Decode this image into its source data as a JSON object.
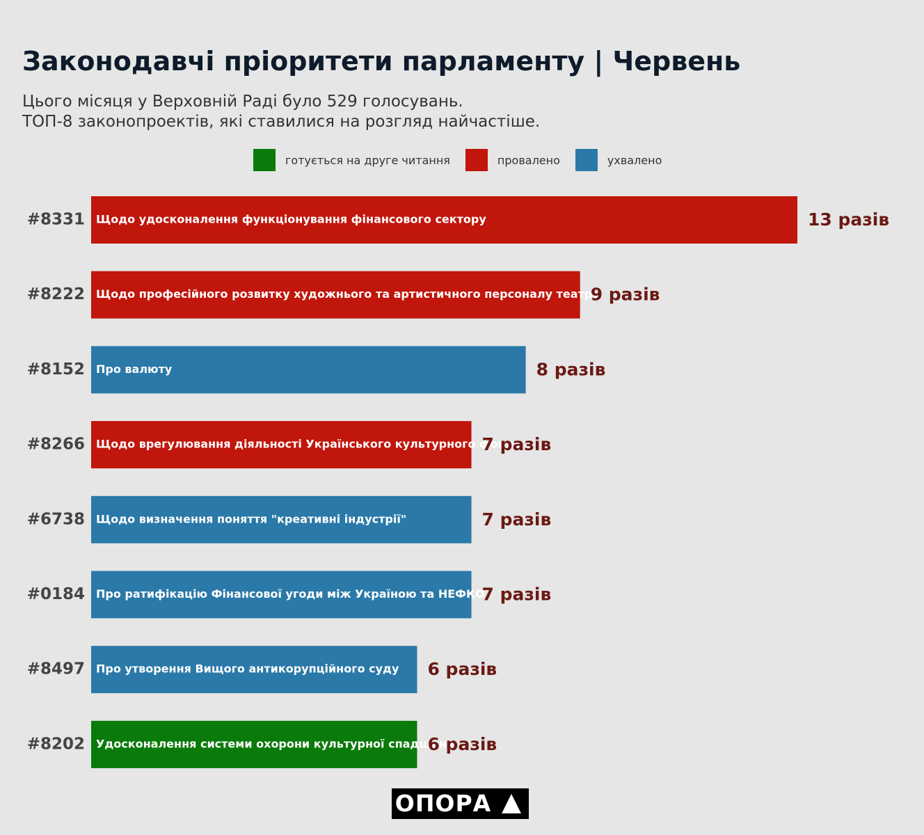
{
  "header": {
    "title": "Законодавчі пріоритети парламенту | Червень",
    "subtitle_line1": "Цього місяця у Верховній Раді було 529 голосувань.",
    "subtitle_line2": "ТОП-8 законопроектів, які ставилися на розгляд найчастіше."
  },
  "legend": [
    {
      "label": "готується на друге читання",
      "color": "#0a7a0a"
    },
    {
      "label": "провалено",
      "color": "#c0160c"
    },
    {
      "label": "ухвалено",
      "color": "#2a79a8"
    }
  ],
  "chart_data": {
    "type": "bar",
    "orientation": "horizontal",
    "title": "Законодавчі пріоритети парламенту | Червень",
    "categories": [
      "#8331",
      "#8222",
      "#8152",
      "#8266",
      "#6738",
      "#0184",
      "#8497",
      "#8202"
    ],
    "bar_labels": [
      "Щодо удосконалення функціонування фінансового сектору",
      "Щодо професійного розвитку художнього та артистичного персоналу театру",
      "Про валюту",
      "Щодо врегулювання діяльності Українського культурного фонду",
      "Щодо визначення поняття \"креативні індустрії\"",
      "Про ратифікацію Фінансової угоди між Україною та НЕФКО",
      "Про утворення Вищого антикорупційного суду",
      "Удосконалення системи охорони культурної спадщини"
    ],
    "values": [
      13,
      9,
      8,
      7,
      7,
      7,
      6,
      6
    ],
    "value_labels": [
      "13 разів",
      "9 разів",
      "8 разів",
      "7 разів",
      "7 разів",
      "7 разів",
      "6 разів",
      "6 разів"
    ],
    "status": [
      "провалено",
      "провалено",
      "ухвалено",
      "провалено",
      "ухвалено",
      "ухвалено",
      "ухвалено",
      "готується на друге читання"
    ],
    "colors": [
      "#c0160c",
      "#c0160c",
      "#2a79a8",
      "#c0160c",
      "#2a79a8",
      "#2a79a8",
      "#2a79a8",
      "#0a7a0a"
    ],
    "value_label_color": "#6b1a14",
    "xlim": [
      0,
      13
    ],
    "grid": false
  },
  "logo": {
    "text": "ОПОРА"
  }
}
